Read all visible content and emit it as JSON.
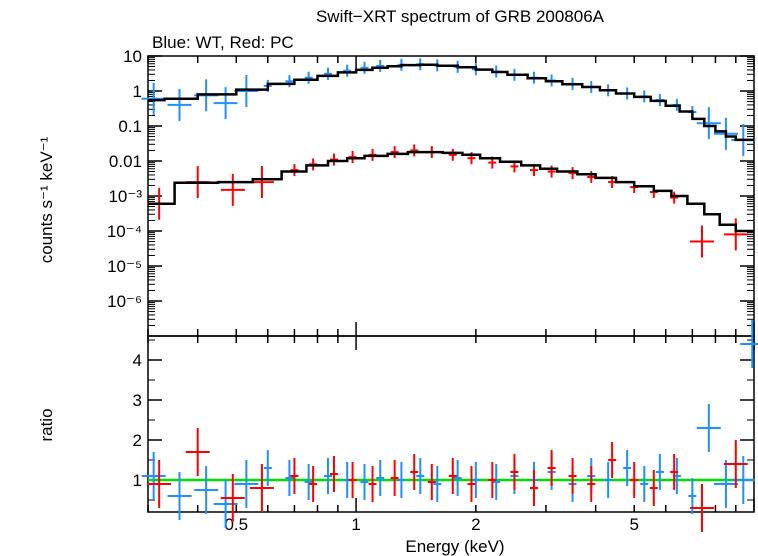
{
  "chart_data": [
    {
      "type": "scatter",
      "title": "Swift−XRT spectrum of GRB 200806A",
      "subtitle": "Blue: WT, Red: PC",
      "xlabel": "",
      "ylabel": "counts s⁻¹ keV⁻¹",
      "xscale": "log",
      "yscale": "log",
      "xlim": [
        0.3,
        10
      ],
      "ylim": [
        1e-07,
        10
      ],
      "yticks": [
        "10",
        "1",
        "0.1",
        "0.01",
        "10⁻³",
        "10⁻⁴",
        "10⁻⁵",
        "10⁻⁶"
      ],
      "colors": {
        "WT": "#1e90ff",
        "PC": "#ff0000",
        "model": "#000000"
      },
      "series": [
        {
          "key": "WT",
          "color": "#1e90ff",
          "points": [
            {
              "x": 0.31,
              "y": 0.6
            },
            {
              "x": 0.36,
              "y": 0.4
            },
            {
              "x": 0.42,
              "y": 0.75
            },
            {
              "x": 0.47,
              "y": 0.45
            },
            {
              "x": 0.53,
              "y": 1.0
            },
            {
              "x": 0.6,
              "y": 1.4
            },
            {
              "x": 0.68,
              "y": 1.9
            },
            {
              "x": 0.76,
              "y": 2.4
            },
            {
              "x": 0.85,
              "y": 3.1
            },
            {
              "x": 0.95,
              "y": 3.8
            },
            {
              "x": 1.05,
              "y": 4.6
            },
            {
              "x": 1.15,
              "y": 5.2
            },
            {
              "x": 1.3,
              "y": 5.6
            },
            {
              "x": 1.45,
              "y": 5.8
            },
            {
              "x": 1.6,
              "y": 5.4
            },
            {
              "x": 1.8,
              "y": 4.9
            },
            {
              "x": 2.0,
              "y": 4.2
            },
            {
              "x": 2.25,
              "y": 3.6
            },
            {
              "x": 2.5,
              "y": 2.9
            },
            {
              "x": 2.8,
              "y": 2.4
            },
            {
              "x": 3.1,
              "y": 2.0
            },
            {
              "x": 3.5,
              "y": 1.6
            },
            {
              "x": 3.9,
              "y": 1.3
            },
            {
              "x": 4.3,
              "y": 1.05
            },
            {
              "x": 4.8,
              "y": 0.85
            },
            {
              "x": 5.3,
              "y": 0.7
            },
            {
              "x": 5.8,
              "y": 0.55
            },
            {
              "x": 6.4,
              "y": 0.4
            },
            {
              "x": 7.0,
              "y": 0.25
            },
            {
              "x": 7.7,
              "y": 0.12
            },
            {
              "x": 8.5,
              "y": 0.06
            },
            {
              "x": 9.4,
              "y": 0.04
            }
          ]
        },
        {
          "key": "PC",
          "color": "#ff0000",
          "points": [
            {
              "x": 0.32,
              "y": 0.0006
            },
            {
              "x": 0.4,
              "y": 0.0025
            },
            {
              "x": 0.49,
              "y": 0.0015
            },
            {
              "x": 0.58,
              "y": 0.0025
            },
            {
              "x": 0.7,
              "y": 0.0055
            },
            {
              "x": 0.78,
              "y": 0.008
            },
            {
              "x": 0.88,
              "y": 0.011
            },
            {
              "x": 0.98,
              "y": 0.013
            },
            {
              "x": 1.1,
              "y": 0.015
            },
            {
              "x": 1.25,
              "y": 0.018
            },
            {
              "x": 1.4,
              "y": 0.02
            },
            {
              "x": 1.55,
              "y": 0.018
            },
            {
              "x": 1.75,
              "y": 0.015
            },
            {
              "x": 1.95,
              "y": 0.012
            },
            {
              "x": 2.2,
              "y": 0.009
            },
            {
              "x": 2.5,
              "y": 0.007
            },
            {
              "x": 2.8,
              "y": 0.0055
            },
            {
              "x": 3.1,
              "y": 0.005
            },
            {
              "x": 3.5,
              "y": 0.0045
            },
            {
              "x": 3.9,
              "y": 0.0035
            },
            {
              "x": 4.4,
              "y": 0.0025
            },
            {
              "x": 5.0,
              "y": 0.0018
            },
            {
              "x": 5.6,
              "y": 0.0013
            },
            {
              "x": 6.3,
              "y": 0.0009
            },
            {
              "x": 7.4,
              "y": 5e-05
            },
            {
              "x": 9.0,
              "y": 8e-05
            }
          ]
        }
      ],
      "models": [
        {
          "key": "WT",
          "step_x": [
            0.3,
            0.33,
            0.4,
            0.5,
            0.6,
            0.7,
            0.8,
            0.9,
            1.0,
            1.1,
            1.2,
            1.3,
            1.45,
            1.6,
            1.8,
            2.0,
            2.2,
            2.4,
            2.7,
            3.0,
            3.3,
            3.7,
            4.1,
            4.5,
            5.0,
            5.5,
            6.0,
            6.5,
            7.0,
            7.5,
            8.0,
            8.5,
            9.0,
            9.5,
            10.0
          ],
          "step_y": [
            0.55,
            0.6,
            0.8,
            1.1,
            1.6,
            2.1,
            2.7,
            3.4,
            4.0,
            4.6,
            5.1,
            5.5,
            5.6,
            5.3,
            4.8,
            4.1,
            3.5,
            2.9,
            2.3,
            1.9,
            1.55,
            1.3,
            1.05,
            0.85,
            0.68,
            0.52,
            0.38,
            0.26,
            0.16,
            0.1,
            0.07,
            0.05,
            0.04,
            0.04
          ]
        },
        {
          "key": "PC",
          "step_x": [
            0.3,
            0.35,
            0.45,
            0.55,
            0.65,
            0.75,
            0.85,
            0.95,
            1.05,
            1.2,
            1.35,
            1.5,
            1.65,
            1.85,
            2.05,
            2.3,
            2.6,
            2.9,
            3.2,
            3.6,
            4.0,
            4.5,
            5.0,
            5.6,
            6.2,
            6.8,
            7.5,
            8.2,
            9.0,
            10.0
          ],
          "step_y": [
            0.0006,
            0.0024,
            0.0025,
            0.003,
            0.005,
            0.0075,
            0.01,
            0.012,
            0.014,
            0.016,
            0.018,
            0.018,
            0.017,
            0.015,
            0.012,
            0.0095,
            0.0075,
            0.006,
            0.005,
            0.0042,
            0.0033,
            0.0025,
            0.0019,
            0.0014,
            0.001,
            0.0006,
            0.0003,
            0.00015,
            0.0001
          ]
        }
      ]
    },
    {
      "type": "scatter",
      "title": "",
      "xlabel": "Energy (keV)",
      "ylabel": "ratio",
      "xscale": "log",
      "yscale": "linear",
      "xlim": [
        0.3,
        10
      ],
      "ylim": [
        0.2,
        4.6
      ],
      "xticks": [
        "0.5",
        "1",
        "2",
        "5"
      ],
      "xtick_values": [
        0.5,
        1,
        2,
        5
      ],
      "yticks": [
        "1",
        "2",
        "3",
        "4"
      ],
      "ytick_values": [
        1,
        2,
        3,
        4
      ],
      "reference_line": {
        "y": 1,
        "color": "#00dd00"
      },
      "series": [
        {
          "key": "WT",
          "color": "#1e90ff",
          "points": [
            {
              "x": 0.31,
              "y": 1.1
            },
            {
              "x": 0.36,
              "y": 0.6
            },
            {
              "x": 0.42,
              "y": 0.75
            },
            {
              "x": 0.47,
              "y": 0.4
            },
            {
              "x": 0.53,
              "y": 0.9
            },
            {
              "x": 0.6,
              "y": 1.3
            },
            {
              "x": 0.68,
              "y": 1.05
            },
            {
              "x": 0.76,
              "y": 0.95
            },
            {
              "x": 0.85,
              "y": 1.1
            },
            {
              "x": 0.95,
              "y": 1.0
            },
            {
              "x": 1.05,
              "y": 0.95
            },
            {
              "x": 1.15,
              "y": 1.05
            },
            {
              "x": 1.3,
              "y": 1.0
            },
            {
              "x": 1.45,
              "y": 1.1
            },
            {
              "x": 1.6,
              "y": 0.9
            },
            {
              "x": 1.8,
              "y": 1.05
            },
            {
              "x": 2.0,
              "y": 1.0
            },
            {
              "x": 2.25,
              "y": 0.95
            },
            {
              "x": 2.5,
              "y": 1.1
            },
            {
              "x": 2.8,
              "y": 1.0
            },
            {
              "x": 3.1,
              "y": 1.2
            },
            {
              "x": 3.5,
              "y": 0.9
            },
            {
              "x": 3.9,
              "y": 1.1
            },
            {
              "x": 4.3,
              "y": 1.0
            },
            {
              "x": 4.8,
              "y": 1.3
            },
            {
              "x": 5.3,
              "y": 0.9
            },
            {
              "x": 5.8,
              "y": 1.2
            },
            {
              "x": 6.4,
              "y": 1.1
            },
            {
              "x": 7.0,
              "y": 0.6
            },
            {
              "x": 7.7,
              "y": 2.3
            },
            {
              "x": 8.5,
              "y": 0.9
            },
            {
              "x": 9.4,
              "y": 1.0
            },
            {
              "x": 9.9,
              "y": 4.4
            }
          ]
        },
        {
          "key": "PC",
          "color": "#ff0000",
          "points": [
            {
              "x": 0.32,
              "y": 0.9
            },
            {
              "x": 0.4,
              "y": 1.7
            },
            {
              "x": 0.49,
              "y": 0.55
            },
            {
              "x": 0.58,
              "y": 0.8
            },
            {
              "x": 0.7,
              "y": 1.1
            },
            {
              "x": 0.78,
              "y": 0.9
            },
            {
              "x": 0.88,
              "y": 1.15
            },
            {
              "x": 0.98,
              "y": 1.0
            },
            {
              "x": 1.1,
              "y": 0.9
            },
            {
              "x": 1.25,
              "y": 1.05
            },
            {
              "x": 1.4,
              "y": 1.2
            },
            {
              "x": 1.55,
              "y": 0.95
            },
            {
              "x": 1.75,
              "y": 1.1
            },
            {
              "x": 1.95,
              "y": 0.9
            },
            {
              "x": 2.2,
              "y": 1.0
            },
            {
              "x": 2.5,
              "y": 1.2
            },
            {
              "x": 2.8,
              "y": 0.8
            },
            {
              "x": 3.1,
              "y": 1.3
            },
            {
              "x": 3.5,
              "y": 1.1
            },
            {
              "x": 3.9,
              "y": 0.9
            },
            {
              "x": 4.4,
              "y": 1.5
            },
            {
              "x": 5.0,
              "y": 1.0
            },
            {
              "x": 5.6,
              "y": 0.8
            },
            {
              "x": 6.3,
              "y": 1.2
            },
            {
              "x": 7.4,
              "y": 0.3
            },
            {
              "x": 9.0,
              "y": 1.4
            }
          ]
        }
      ]
    }
  ]
}
